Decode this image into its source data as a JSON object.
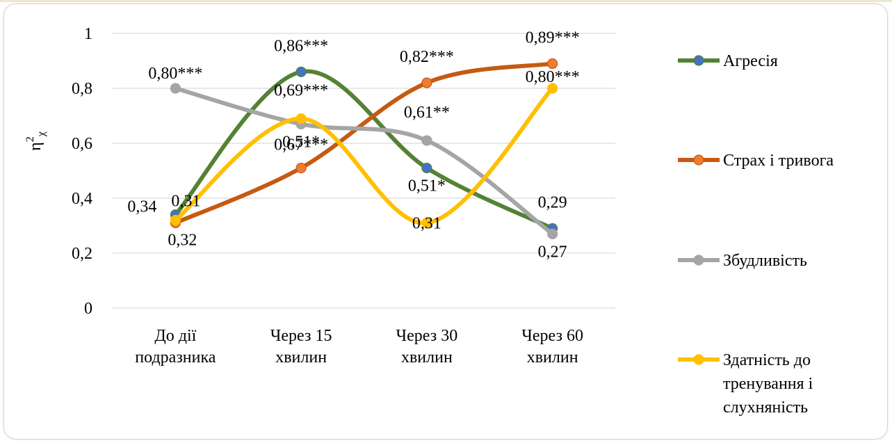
{
  "chart_data": {
    "type": "line",
    "title": "",
    "xlabel": "",
    "ylabel": "η²χ",
    "ylabel_main": "η",
    "ylabel_sup": "2",
    "ylabel_sub": "χ",
    "ylim": [
      0,
      1
    ],
    "yticks": [
      "0",
      "0,2",
      "0,4",
      "0,6",
      "0,8",
      "1"
    ],
    "grid": true,
    "legend_position": "right",
    "categories": [
      [
        "До дії",
        "подразника"
      ],
      [
        "Через 15",
        "хвилин"
      ],
      [
        "Через 30",
        "хвилин"
      ],
      [
        "Через 60",
        "хвилин"
      ]
    ],
    "series": [
      {
        "name": "Агресія",
        "name_lines": [
          "Агресія"
        ],
        "color": "#548235",
        "marker": "#4472c4",
        "values": [
          0.34,
          0.86,
          0.51,
          0.29
        ],
        "labels": [
          "0,34",
          "0,86***",
          "0,51*",
          "0,29"
        ]
      },
      {
        "name": "Страх і тривога",
        "name_lines": [
          "Страх і тривога"
        ],
        "color": "#c55a11",
        "marker": "#ed7d31",
        "values": [
          0.31,
          0.51,
          0.82,
          0.89
        ],
        "labels": [
          "0,31",
          "0,51*",
          "0,82***",
          "0,89***"
        ]
      },
      {
        "name": "Збудливість",
        "name_lines": [
          "Збудливість"
        ],
        "color": "#a5a5a5",
        "marker": "#a5a5a5",
        "values": [
          0.8,
          0.67,
          0.61,
          0.27
        ],
        "labels": [
          "0,80***",
          "0,67***",
          "0,61**",
          "0,27"
        ]
      },
      {
        "name": "Здатність до тренування і слухняність",
        "name_lines": [
          "Здатність до",
          "тренування і",
          "слухняність"
        ],
        "color": "#ffc000",
        "marker": "#ffc000",
        "values": [
          0.32,
          0.69,
          0.31,
          0.8
        ],
        "labels": [
          "0,32",
          "0,69***",
          "0,31",
          "0,80***"
        ]
      }
    ]
  }
}
